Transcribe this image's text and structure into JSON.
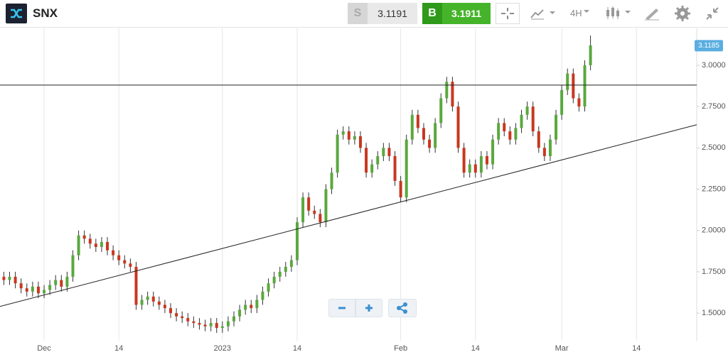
{
  "header": {
    "symbol": "SNX",
    "sell_key": "S",
    "sell_price": "3.1191",
    "buy_key": "B",
    "buy_price": "3.1911",
    "timeframe": "4H"
  },
  "chart_data": {
    "type": "candlestick",
    "categories": [
      null,
      null,
      null,
      null,
      null,
      null,
      null,
      "Dec",
      null,
      null,
      null,
      null,
      null,
      null,
      null,
      null,
      null,
      null,
      null,
      null,
      "14",
      null,
      null,
      null,
      null,
      null,
      null,
      null,
      null,
      null,
      null,
      null,
      null,
      null,
      null,
      null,
      null,
      null,
      "2023",
      null,
      null,
      null,
      null,
      null,
      null,
      null,
      null,
      null,
      null,
      null,
      null,
      "14",
      null,
      null,
      null,
      null,
      null,
      null,
      null,
      null,
      null,
      null,
      null,
      null,
      null,
      null,
      null,
      null,
      null,
      "Feb",
      null,
      null,
      null,
      null,
      null,
      null,
      null,
      null,
      null,
      null,
      null,
      null,
      "14",
      null,
      null,
      null,
      null,
      null,
      null,
      null,
      null,
      null,
      null,
      null,
      null,
      null,
      null,
      "Mar",
      null,
      null,
      null,
      null,
      null,
      null,
      null,
      null,
      null,
      null,
      null,
      null,
      "14",
      null,
      null,
      null,
      null,
      null,
      null
    ],
    "open": [
      1.72,
      1.7,
      1.72,
      1.68,
      1.65,
      1.63,
      1.66,
      1.62,
      1.64,
      1.67,
      1.7,
      1.66,
      1.72,
      1.85,
      1.97,
      1.95,
      1.92,
      1.9,
      1.93,
      1.88,
      1.85,
      1.82,
      1.8,
      1.78,
      1.55,
      1.58,
      1.6,
      1.57,
      1.55,
      1.53,
      1.5,
      1.48,
      1.47,
      1.45,
      1.44,
      1.43,
      1.42,
      1.44,
      1.41,
      1.42,
      1.45,
      1.48,
      1.52,
      1.55,
      1.53,
      1.58,
      1.63,
      1.68,
      1.72,
      1.75,
      1.78,
      1.82,
      2.05,
      2.2,
      2.12,
      2.1,
      2.05,
      2.25,
      2.35,
      2.58,
      2.6,
      2.55,
      2.57,
      2.5,
      2.35,
      2.4,
      2.45,
      2.5,
      2.45,
      2.3,
      2.2,
      2.55,
      2.7,
      2.62,
      2.55,
      2.5,
      2.65,
      2.8,
      2.9,
      2.75,
      2.5,
      2.35,
      2.4,
      2.35,
      2.45,
      2.4,
      2.55,
      2.65,
      2.6,
      2.55,
      2.62,
      2.7,
      2.75,
      2.6,
      2.5,
      2.45,
      2.55,
      2.7,
      2.85,
      2.95,
      2.8,
      2.75,
      3.0,
      null,
      null,
      null,
      null,
      null,
      null,
      null,
      null,
      null,
      null,
      null,
      null,
      null,
      null
    ],
    "high": [
      1.75,
      1.75,
      1.75,
      1.71,
      1.68,
      1.69,
      1.69,
      1.67,
      1.7,
      1.73,
      1.73,
      1.75,
      1.88,
      2.0,
      2.0,
      1.98,
      1.95,
      1.96,
      1.96,
      1.91,
      1.88,
      1.85,
      1.83,
      1.81,
      1.61,
      1.63,
      1.63,
      1.6,
      1.58,
      1.56,
      1.53,
      1.51,
      1.5,
      1.48,
      1.47,
      1.46,
      1.47,
      1.47,
      1.45,
      1.48,
      1.51,
      1.55,
      1.58,
      1.58,
      1.61,
      1.66,
      1.71,
      1.75,
      1.78,
      1.81,
      1.85,
      2.08,
      2.23,
      2.23,
      2.15,
      2.13,
      2.28,
      2.38,
      2.61,
      2.63,
      2.63,
      2.6,
      2.6,
      2.53,
      2.43,
      2.48,
      2.53,
      2.53,
      2.48,
      2.33,
      2.58,
      2.73,
      2.73,
      2.65,
      2.58,
      2.68,
      2.83,
      2.93,
      2.93,
      2.78,
      2.53,
      2.43,
      2.43,
      2.48,
      2.48,
      2.58,
      2.68,
      2.68,
      2.63,
      2.65,
      2.73,
      2.78,
      2.78,
      2.63,
      2.53,
      2.58,
      2.73,
      2.88,
      2.98,
      2.98,
      2.83,
      3.03,
      3.18,
      null,
      null,
      null,
      null,
      null,
      null,
      null,
      null,
      null,
      null,
      null,
      null,
      null,
      null
    ],
    "low": [
      1.67,
      1.67,
      1.65,
      1.62,
      1.6,
      1.6,
      1.59,
      1.59,
      1.61,
      1.64,
      1.63,
      1.63,
      1.69,
      1.82,
      1.92,
      1.89,
      1.87,
      1.87,
      1.85,
      1.82,
      1.79,
      1.77,
      1.75,
      1.52,
      1.52,
      1.55,
      1.54,
      1.52,
      1.5,
      1.47,
      1.45,
      1.44,
      1.42,
      1.41,
      1.4,
      1.39,
      1.39,
      1.38,
      1.38,
      1.39,
      1.42,
      1.45,
      1.49,
      1.5,
      1.5,
      1.55,
      1.6,
      1.65,
      1.69,
      1.72,
      1.75,
      1.79,
      2.02,
      2.09,
      2.07,
      2.02,
      2.02,
      2.22,
      2.32,
      2.55,
      2.52,
      2.52,
      2.47,
      2.32,
      2.32,
      2.37,
      2.42,
      2.42,
      2.27,
      2.17,
      2.17,
      2.52,
      2.59,
      2.52,
      2.47,
      2.47,
      2.62,
      2.77,
      2.72,
      2.47,
      2.32,
      2.32,
      2.32,
      2.32,
      2.37,
      2.37,
      2.52,
      2.57,
      2.52,
      2.52,
      2.59,
      2.67,
      2.57,
      2.47,
      2.42,
      2.42,
      2.52,
      2.67,
      2.82,
      2.77,
      2.72,
      2.72,
      2.97,
      null,
      null,
      null,
      null,
      null,
      null,
      null,
      null,
      null,
      null,
      null,
      null,
      null,
      null
    ],
    "close": [
      1.7,
      1.72,
      1.68,
      1.65,
      1.63,
      1.66,
      1.62,
      1.64,
      1.67,
      1.7,
      1.66,
      1.72,
      1.85,
      1.97,
      1.95,
      1.92,
      1.9,
      1.93,
      1.88,
      1.85,
      1.82,
      1.8,
      1.78,
      1.55,
      1.58,
      1.6,
      1.57,
      1.55,
      1.53,
      1.5,
      1.48,
      1.47,
      1.45,
      1.44,
      1.43,
      1.42,
      1.44,
      1.41,
      1.42,
      1.45,
      1.48,
      1.52,
      1.55,
      1.53,
      1.58,
      1.63,
      1.68,
      1.72,
      1.75,
      1.78,
      1.82,
      2.05,
      2.2,
      2.12,
      2.1,
      2.05,
      2.25,
      2.35,
      2.58,
      2.6,
      2.55,
      2.57,
      2.5,
      2.35,
      2.4,
      2.45,
      2.5,
      2.45,
      2.3,
      2.2,
      2.55,
      2.7,
      2.62,
      2.55,
      2.5,
      2.65,
      2.8,
      2.9,
      2.75,
      2.5,
      2.35,
      2.4,
      2.35,
      2.45,
      2.4,
      2.55,
      2.65,
      2.6,
      2.55,
      2.62,
      2.7,
      2.75,
      2.6,
      2.5,
      2.45,
      2.55,
      2.7,
      2.85,
      2.95,
      2.8,
      2.75,
      3.0,
      3.12,
      null,
      null,
      null,
      null,
      null,
      null,
      null,
      null,
      null,
      null,
      null,
      null,
      null,
      null
    ],
    "up_color": "#5aa83f",
    "down_color": "#c8371f",
    "wick_color": "#333333",
    "horizontal_line": 2.88,
    "trend_line": [
      1.54,
      2.64
    ],
    "last_price": 3.1185,
    "last_price_color": "#5aaee0",
    "ylim": [
      1.333,
      3.223
    ],
    "yticks": [
      {
        "value": 1.5,
        "label": "1.5000"
      },
      {
        "value": 1.75,
        "label": "1.7500"
      },
      {
        "value": 2,
        "label": "2.0000"
      },
      {
        "value": 2.25,
        "label": "2.2500"
      },
      {
        "value": 2.5,
        "label": "2.5000"
      },
      {
        "value": 2.75,
        "label": "2.7500"
      },
      {
        "value": 3,
        "label": "3.0000"
      }
    ],
    "grid": true
  }
}
